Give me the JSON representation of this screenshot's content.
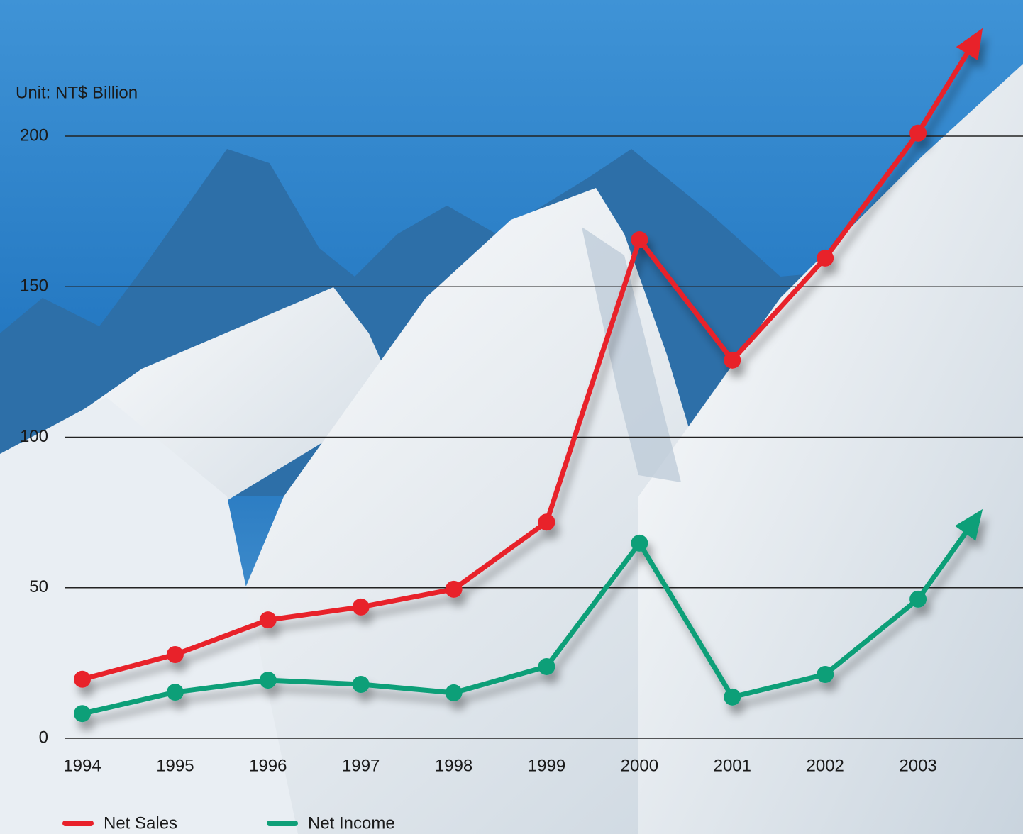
{
  "chart_data": {
    "type": "line",
    "unit_label": "Unit: NT$ Billion",
    "categories": [
      "1994",
      "1995",
      "1996",
      "1997",
      "1998",
      "1999",
      "2000",
      "2001",
      "2002",
      "2003"
    ],
    "series": [
      {
        "name": "Net Sales",
        "color": "#e8202a",
        "values": [
          19.6,
          27.8,
          39.3,
          43.6,
          49.5,
          71.8,
          165.6,
          125.6,
          159.5,
          201
        ]
      },
      {
        "name": "Net Income",
        "color": "#0f9f78",
        "values": [
          8.2,
          15.3,
          19.3,
          17.9,
          15.1,
          23.8,
          64.8,
          13.7,
          21.2,
          46.2
        ]
      }
    ],
    "ylim": [
      0,
      240
    ],
    "yticks": [
      0,
      50,
      100,
      150,
      200
    ],
    "grid": true
  }
}
